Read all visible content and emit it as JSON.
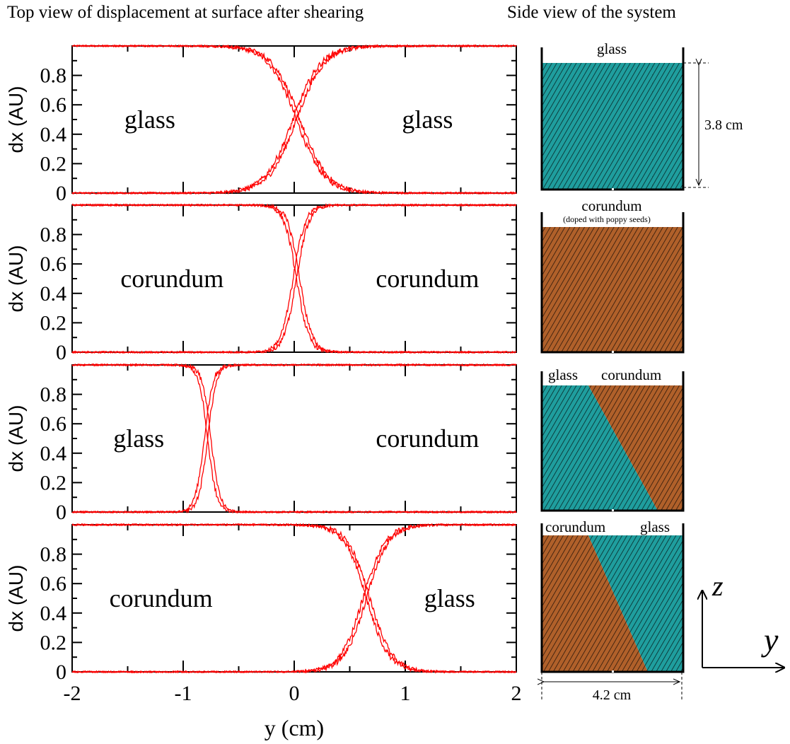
{
  "headings": {
    "left": "Top view of displacement at surface after shearing",
    "right": "Side view of the system"
  },
  "colors": {
    "curve": "#ff0000",
    "glass": "#1f9e9e",
    "corundum": "#b0602a",
    "hatch": "#000000"
  },
  "chart_data": [
    {
      "type": "line",
      "xlabel": "",
      "ylabel": "dx (AU)",
      "xlim": [
        -2,
        2
      ],
      "ylim": [
        0,
        1
      ],
      "x_ticks": [
        "-2",
        "-1",
        "0",
        "1",
        "2"
      ],
      "y_ticks": [
        "0",
        "0.2",
        "0.4",
        "0.6",
        "0.8"
      ],
      "annotations": [
        {
          "text": "glass",
          "x": -1.3,
          "y": 0.5
        },
        {
          "text": "glass",
          "x": 1.2,
          "y": 0.5
        }
      ],
      "series": [
        {
          "shape": "falling",
          "center": 0.02,
          "width": 0.5,
          "crossing": 0.5
        },
        {
          "shape": "rising",
          "center": 0.02,
          "width": 0.5,
          "crossing": 0.5
        }
      ]
    },
    {
      "type": "line",
      "xlabel": "",
      "ylabel": "dx (AU)",
      "xlim": [
        -2,
        2
      ],
      "ylim": [
        0,
        1
      ],
      "x_ticks": [
        "-2",
        "-1",
        "0",
        "1",
        "2"
      ],
      "y_ticks": [
        "0",
        "0.2",
        "0.4",
        "0.6",
        "0.8"
      ],
      "annotations": [
        {
          "text": "corundum",
          "x": -1.1,
          "y": 0.5
        },
        {
          "text": "corundum",
          "x": 1.2,
          "y": 0.5
        }
      ],
      "series": [
        {
          "shape": "falling",
          "center": 0.02,
          "width": 0.22,
          "crossing": 0.58
        },
        {
          "shape": "rising",
          "center": 0.02,
          "width": 0.22,
          "crossing": 0.58
        }
      ]
    },
    {
      "type": "line",
      "xlabel": "",
      "ylabel": "dx (AU)",
      "xlim": [
        -2,
        2
      ],
      "ylim": [
        0,
        1
      ],
      "x_ticks": [
        "-2",
        "-1",
        "0",
        "1",
        "2"
      ],
      "y_ticks": [
        "0",
        "0.2",
        "0.4",
        "0.6",
        "0.8"
      ],
      "annotations": [
        {
          "text": "glass",
          "x": -1.4,
          "y": 0.5
        },
        {
          "text": "corundum",
          "x": 1.2,
          "y": 0.5
        }
      ],
      "series": [
        {
          "shape": "falling",
          "center": -0.78,
          "width": 0.16,
          "crossing": 0.56
        },
        {
          "shape": "rising",
          "center": -0.78,
          "width": 0.16,
          "crossing": 0.56
        }
      ]
    },
    {
      "type": "line",
      "xlabel": "y (cm)",
      "ylabel": "dx (AU)",
      "xlim": [
        -2,
        2
      ],
      "ylim": [
        0,
        1
      ],
      "x_ticks": [
        "-2",
        "-1",
        "0",
        "1",
        "2"
      ],
      "y_ticks": [
        "0",
        "0.2",
        "0.4",
        "0.6",
        "0.8"
      ],
      "annotations": [
        {
          "text": "corundum",
          "x": -1.2,
          "y": 0.5
        },
        {
          "text": "glass",
          "x": 1.4,
          "y": 0.5
        }
      ],
      "series": [
        {
          "shape": "falling",
          "center": 0.65,
          "width": 0.4,
          "crossing": 0.5
        },
        {
          "shape": "rising",
          "center": 0.65,
          "width": 0.4,
          "crossing": 0.5
        }
      ]
    }
  ],
  "side_views": [
    {
      "labels": [
        "glass"
      ],
      "subtitle": "",
      "fill": "glass"
    },
    {
      "labels": [
        "corundum"
      ],
      "subtitle": "(doped with poppy seeds)",
      "fill": "corundum"
    },
    {
      "labels": [
        "glass",
        "corundum"
      ],
      "subtitle": "",
      "fill": "split"
    },
    {
      "labels": [
        "corundum",
        "glass"
      ],
      "subtitle": "",
      "fill": "split"
    }
  ],
  "dimensions": {
    "height": "3.8 cm",
    "width": "4.2 cm"
  },
  "axes_glyph": {
    "z": "z",
    "y": "y"
  }
}
